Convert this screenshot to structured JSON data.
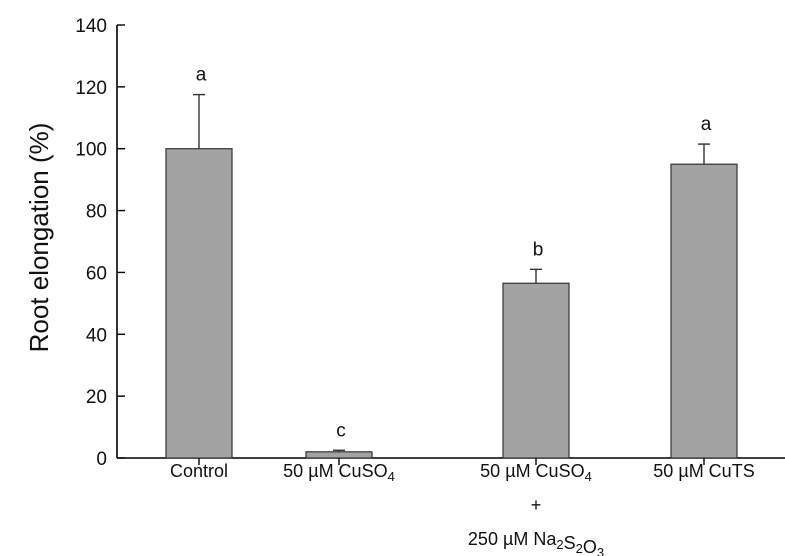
{
  "chart_data": {
    "type": "bar",
    "title": "",
    "xlabel": "",
    "ylabel": "Root  elongation (%)",
    "ylim": [
      0,
      140
    ],
    "yticks": [
      0,
      20,
      40,
      60,
      80,
      100,
      120,
      140
    ],
    "grid": false,
    "legend": "none",
    "bar_color": "#a3a3a3",
    "categories": [
      {
        "lines": [
          [
            {
              "t": "Control"
            }
          ]
        ]
      },
      {
        "lines": [
          [
            {
              "t": "50 µM CuSO"
            },
            {
              "t": "4",
              "sub": true
            }
          ]
        ]
      },
      {
        "lines": [
          [
            {
              "t": "50 µM CuSO"
            },
            {
              "t": "4",
              "sub": true
            }
          ],
          [
            {
              "t": "+"
            }
          ],
          [
            {
              "t": "250 µM Na"
            },
            {
              "t": "2",
              "sub": true
            },
            {
              "t": "S"
            },
            {
              "t": "2",
              "sub": true
            },
            {
              "t": "O"
            },
            {
              "t": "3",
              "sub": true
            }
          ]
        ]
      },
      {
        "lines": [
          [
            {
              "t": "50 µM CuTS"
            }
          ]
        ]
      }
    ],
    "values": [
      100,
      2,
      56.5,
      95
    ],
    "errors": [
      17.5,
      0.5,
      4.5,
      6.5
    ],
    "significance": [
      "a",
      "c",
      "b",
      "a"
    ]
  }
}
